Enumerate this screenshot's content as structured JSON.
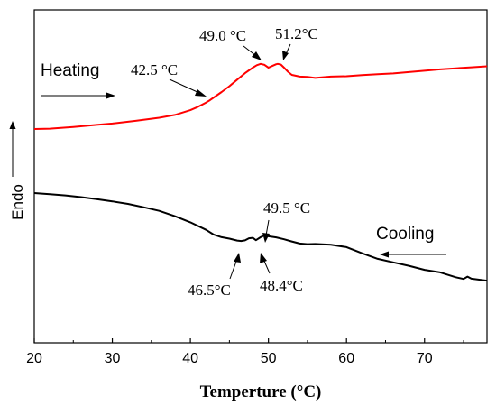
{
  "chart_data": {
    "type": "line",
    "xlabel": "Temperture (°C)",
    "ylabel": "Endo",
    "xlim": [
      20,
      78
    ],
    "xticks": [
      20,
      30,
      40,
      50,
      60,
      70
    ],
    "yticks_shown": false,
    "grid": false,
    "series": [
      {
        "color": "#ff0000",
        "x": [
          20,
          22,
          25,
          28,
          30,
          33,
          36,
          38,
          40,
          41,
          42,
          42.5,
          43,
          44,
          45,
          46,
          47,
          48,
          48.5,
          49,
          49.5,
          50,
          50.5,
          51,
          51.2,
          51.6,
          52,
          52.5,
          53,
          54,
          55,
          56,
          58,
          60,
          62,
          64,
          66,
          68,
          70,
          72,
          74,
          76,
          78
        ],
        "y": [
          0.0,
          0.1,
          0.6,
          1.2,
          1.6,
          2.4,
          3.3,
          4.1,
          5.5,
          6.5,
          7.7,
          8.4,
          9.2,
          10.8,
          12.5,
          14.4,
          16.3,
          17.9,
          18.6,
          19.0,
          18.7,
          17.9,
          18.4,
          18.9,
          19.0,
          18.8,
          17.9,
          16.7,
          15.8,
          15.3,
          15.2,
          14.9,
          15.3,
          15.4,
          15.7,
          16.0,
          16.2,
          16.6,
          17.0,
          17.4,
          17.7,
          18.0,
          18.3
        ]
      },
      {
        "color": "#000000",
        "x": [
          20,
          22,
          24,
          26,
          28,
          30,
          32,
          34,
          36,
          38,
          40,
          42,
          43,
          44,
          45,
          46,
          46.5,
          47,
          47.5,
          48,
          48.4,
          49,
          49.5,
          50,
          51,
          52,
          53,
          54,
          55,
          56,
          58,
          60,
          62,
          64,
          66,
          68,
          70,
          72,
          74,
          75,
          75.5,
          76,
          78
        ],
        "y": [
          0.0,
          -0.5,
          -1.1,
          -1.9,
          -2.9,
          -3.9,
          -5.1,
          -6.7,
          -8.4,
          -10.9,
          -13.8,
          -17.3,
          -19.6,
          -20.8,
          -21.5,
          -22.4,
          -22.6,
          -22.3,
          -21.3,
          -21.1,
          -22.2,
          -20.8,
          -19.9,
          -20.4,
          -20.9,
          -21.8,
          -22.8,
          -23.8,
          -24.1,
          -24.0,
          -24.4,
          -25.5,
          -28.4,
          -31.0,
          -32.7,
          -34.3,
          -36.2,
          -37.4,
          -39.7,
          -40.5,
          -39.4,
          -40.4,
          -41.3
        ]
      }
    ],
    "annotations": {
      "heating": "Heating",
      "cooling": "Cooling",
      "h1": "42.5 °C",
      "h2": "49.0 °C",
      "h3": "51.2°C",
      "c1": "49.5 °C",
      "c2": "46.5°C",
      "c3": "48.4°C"
    }
  }
}
